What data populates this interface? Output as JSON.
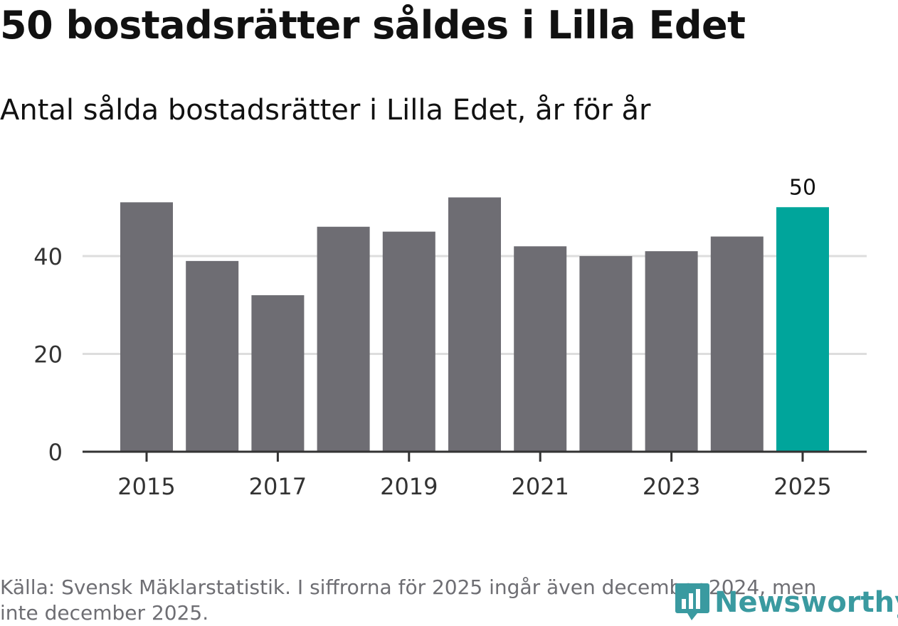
{
  "header": {
    "title": "50 bostadsrätter såldes i Lilla Edet",
    "subtitle": "Antal sålda bostadsrätter i Lilla Edet, år för år"
  },
  "chart_data": {
    "type": "bar",
    "title": "50 bostadsrätter såldes i Lilla Edet",
    "subtitle": "Antal sålda bostadsrätter i Lilla Edet, år för år",
    "categories": [
      "2015",
      "2016",
      "2017",
      "2018",
      "2019",
      "2020",
      "2021",
      "2022",
      "2023",
      "2024",
      "2025"
    ],
    "values": [
      51,
      39,
      32,
      46,
      45,
      52,
      42,
      40,
      41,
      44,
      50
    ],
    "x_tick_labels": [
      "2015",
      "2017",
      "2019",
      "2021",
      "2023",
      "2025"
    ],
    "y_ticks": [
      0,
      20,
      40
    ],
    "ylim": [
      0,
      56
    ],
    "highlight_label": "50",
    "colors": {
      "bar": "#6e6d73",
      "highlight": "#00a59b",
      "grid": "#dddddd",
      "axis": "#333333"
    },
    "xlabel": "",
    "ylabel": ""
  },
  "footer": {
    "source": "Källa: Svensk Mäklarstatistik. I siffrorna för 2025 ingår även december 2024, men inte december 2025.",
    "brand": "Newsworthy",
    "brand_icon": "bar-chart-icon"
  }
}
